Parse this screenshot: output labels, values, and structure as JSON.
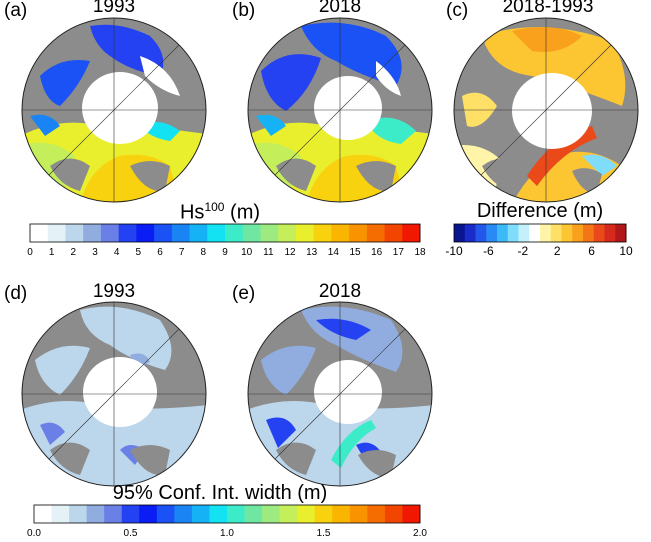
{
  "panels": [
    {
      "letter": "(a)",
      "title": "1993"
    },
    {
      "letter": "(b)",
      "title": "2018"
    },
    {
      "letter": "(c)",
      "title": "2018-1993"
    },
    {
      "letter": "(d)",
      "title": "1993"
    },
    {
      "letter": "(e)",
      "title": "2018"
    }
  ],
  "colorbar_hs": {
    "title_main": "Hs",
    "title_sup": "100",
    "title_unit": "(m)",
    "ticks": [
      "0",
      "1",
      "2",
      "3",
      "4",
      "5",
      "6",
      "7",
      "8",
      "9",
      "10",
      "11",
      "12",
      "13",
      "14",
      "15",
      "16",
      "17",
      "18"
    ],
    "colors": [
      "#ffffff",
      "#e4f2f8",
      "#bcd6ec",
      "#91addf",
      "#6a80e6",
      "#2442f2",
      "#0a1df5",
      "#1a52f6",
      "#1b84f5",
      "#15b3f6",
      "#12e2f2",
      "#3cecc9",
      "#6fe7a3",
      "#9dea80",
      "#c4ef5a",
      "#e9ef2c",
      "#f8d20e",
      "#f9b500",
      "#f99300",
      "#f56d00",
      "#f24500",
      "#f01800"
    ]
  },
  "colorbar_diff": {
    "title": "Difference (m)",
    "ticks": [
      "-10",
      "-6",
      "-2",
      "2",
      "6",
      "10"
    ],
    "colors": [
      "#0a1590",
      "#1a2cc8",
      "#2357ea",
      "#2a8af5",
      "#3cbaf8",
      "#7fdcfb",
      "#c4f0fc",
      "#ffffff",
      "#fff4a8",
      "#fee066",
      "#fcc532",
      "#f9a01c",
      "#f47418",
      "#ea4a1a",
      "#d62a1e",
      "#b0181a"
    ]
  },
  "colorbar_ci": {
    "title": "95% Conf. Int. width (m)",
    "ticks": [
      "0.0",
      "0.5",
      "1.0",
      "1.5",
      "2.0"
    ],
    "colors": [
      "#ffffff",
      "#e4f2f8",
      "#bcd6ec",
      "#91addf",
      "#6a80e6",
      "#2442f2",
      "#0a1df5",
      "#1a52f6",
      "#1b84f5",
      "#15b3f6",
      "#12e2f2",
      "#3cecc9",
      "#6fe7a3",
      "#9dea80",
      "#c4ef5a",
      "#e9ef2c",
      "#f8d20e",
      "#f9b500",
      "#f99300",
      "#f56d00",
      "#f24500",
      "#f01800"
    ]
  },
  "colors": {
    "land": "#8c8c8c",
    "ice": "#ffffff",
    "outline": "#222222"
  }
}
